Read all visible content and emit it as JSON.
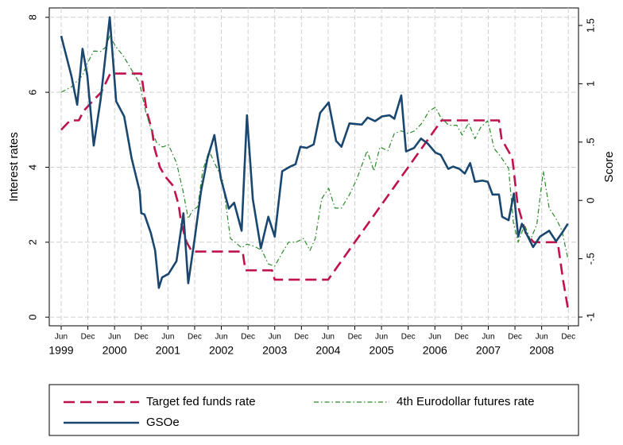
{
  "chart_data": {
    "type": "line",
    "y_label": "Interest rates",
    "y2_label": "Score",
    "xlim": [
      1999.277,
      2009.19
    ],
    "ylim": [
      -0.23,
      8.25
    ],
    "y2lim": [
      -1.075,
      1.65
    ],
    "yticks": [
      0,
      2,
      4,
      6,
      8
    ],
    "y2ticks": [
      -1,
      {
        "value": -0.5,
        "label": "-.5"
      },
      0,
      {
        "value": 0.5,
        "label": ".5"
      },
      1,
      1.5
    ],
    "xticks": [
      {
        "value": 1999.5,
        "label": "Jun"
      },
      {
        "value": 2000.0,
        "label": "Dec"
      },
      {
        "value": 2000.5,
        "label": "Jun"
      },
      {
        "value": 2001.0,
        "label": "Dec"
      },
      {
        "value": 2001.5,
        "label": "Jun"
      },
      {
        "value": 2002.0,
        "label": "Dec"
      },
      {
        "value": 2002.5,
        "label": "Jun"
      },
      {
        "value": 2003.0,
        "label": "Dec"
      },
      {
        "value": 2003.5,
        "label": "Jun"
      },
      {
        "value": 2004.0,
        "label": "Dec"
      },
      {
        "value": 2004.5,
        "label": "Jun"
      },
      {
        "value": 2005.0,
        "label": "Dec"
      },
      {
        "value": 2005.5,
        "label": "Jun"
      },
      {
        "value": 2006.0,
        "label": "Dec"
      },
      {
        "value": 2006.5,
        "label": "Jun"
      },
      {
        "value": 2007.0,
        "label": "Dec"
      },
      {
        "value": 2007.5,
        "label": "Jun"
      },
      {
        "value": 2008.0,
        "label": "Dec"
      },
      {
        "value": 2008.5,
        "label": "Jun"
      },
      {
        "value": 2009.0,
        "label": "Dec"
      }
    ],
    "year_labels": [
      {
        "value": 1999.5,
        "label": "1999"
      },
      {
        "value": 2000.5,
        "label": "2000"
      },
      {
        "value": 2001.5,
        "label": "2001"
      },
      {
        "value": 2002.5,
        "label": "2002"
      },
      {
        "value": 2003.5,
        "label": "2003"
      },
      {
        "value": 2004.5,
        "label": "2004"
      },
      {
        "value": 2005.5,
        "label": "2005"
      },
      {
        "value": 2006.5,
        "label": "2006"
      },
      {
        "value": 2007.5,
        "label": "2007"
      },
      {
        "value": 2008.5,
        "label": "2008"
      }
    ],
    "grid": true,
    "legend": "bottom",
    "series": [
      {
        "name": "Target fed funds rate",
        "color": "#c0134e",
        "style": "dash",
        "axis": "y",
        "x": [
          1999.5,
          1999.67,
          1999.83,
          1999.92,
          2000.08,
          2000.25,
          2000.42,
          2001.0,
          2001.05,
          2001.1,
          2001.2,
          2001.25,
          2001.35,
          2001.45,
          2001.6,
          2001.7,
          2001.75,
          2001.85,
          2001.95,
          2002.9,
          2002.95,
          2003.45,
          2003.5,
          2004.5,
          2004.625,
          2004.75,
          2004.875,
          2005.0,
          2005.125,
          2005.25,
          2005.375,
          2005.5,
          2005.625,
          2005.75,
          2005.875,
          2006.0,
          2006.125,
          2006.25,
          2006.375,
          2006.5,
          2006.625,
          2007.7,
          2007.75,
          2007.85,
          2007.95,
          2008.05,
          2008.2,
          2008.35,
          2008.8,
          2008.85,
          2008.9,
          2008.99
        ],
        "values": [
          5.0,
          5.25,
          5.25,
          5.5,
          5.75,
          6.0,
          6.5,
          6.5,
          6.0,
          5.5,
          5.0,
          4.5,
          4.0,
          3.75,
          3.5,
          3.0,
          2.5,
          2.0,
          1.75,
          1.75,
          1.25,
          1.25,
          1.0,
          1.0,
          1.25,
          1.5,
          1.75,
          2.0,
          2.25,
          2.5,
          2.75,
          3.0,
          3.25,
          3.5,
          3.75,
          4.0,
          4.25,
          4.5,
          4.75,
          5.0,
          5.25,
          5.25,
          4.75,
          4.5,
          4.25,
          3.0,
          2.25,
          2.0,
          2.0,
          1.5,
          1.0,
          0.25
        ]
      },
      {
        "name": "4th Eurodollar futures rate",
        "color": "#2a8a2a",
        "style": "dashdot",
        "axis": "y",
        "x": [
          1999.5,
          1999.69,
          1999.9,
          1999.99,
          2000.11,
          2000.24,
          2000.33,
          2000.41,
          2000.53,
          2000.66,
          2000.81,
          2000.97,
          2001.08,
          2001.18,
          2001.29,
          2001.4,
          2001.51,
          2001.66,
          2001.78,
          2001.88,
          2001.96,
          2002.06,
          2002.15,
          2002.27,
          2002.37,
          2002.52,
          2002.67,
          2002.76,
          2002.88,
          2002.98,
          2003.12,
          2003.26,
          2003.38,
          2003.5,
          2003.64,
          2003.76,
          2003.9,
          2004.04,
          2004.16,
          2004.26,
          2004.38,
          2004.51,
          2004.63,
          2004.75,
          2004.9,
          2005.04,
          2005.23,
          2005.36,
          2005.47,
          2005.62,
          2005.74,
          2005.87,
          2006.0,
          2006.12,
          2006.26,
          2006.39,
          2006.51,
          2006.61,
          2006.76,
          2006.91,
          2007.01,
          2007.13,
          2007.25,
          2007.36,
          2007.49,
          2007.61,
          2007.73,
          2007.88,
          2007.97,
          2008.06,
          2008.18,
          2008.29,
          2008.41,
          2008.53,
          2008.64,
          2008.77,
          2008.88,
          2008.99
        ],
        "values": [
          6.0,
          6.14,
          6.45,
          6.77,
          7.1,
          7.09,
          7.2,
          7.5,
          7.2,
          6.98,
          6.62,
          6.24,
          5.5,
          5.03,
          4.65,
          4.54,
          4.6,
          4.12,
          3.38,
          2.63,
          2.85,
          2.95,
          3.9,
          4.44,
          4.12,
          3.69,
          2.1,
          2.0,
          1.85,
          1.95,
          1.89,
          1.78,
          1.42,
          1.36,
          1.72,
          2.0,
          2.0,
          2.1,
          1.78,
          2.1,
          3.16,
          3.44,
          2.91,
          2.91,
          3.27,
          3.69,
          4.44,
          3.9,
          4.54,
          4.44,
          4.9,
          4.97,
          4.9,
          4.97,
          5.18,
          5.5,
          5.6,
          5.33,
          5.12,
          5.12,
          4.86,
          5.18,
          4.76,
          5.07,
          5.24,
          4.5,
          4.29,
          3.97,
          2.53,
          2.0,
          2.46,
          2.06,
          2.48,
          3.9,
          2.91,
          2.63,
          2.31,
          1.57
        ]
      },
      {
        "name": "GSOe",
        "color": "#1a476f",
        "style": "solid",
        "axis": "y2",
        "x": [
          1999.5,
          1999.69,
          1999.8,
          1999.9,
          1999.99,
          2000.11,
          2000.24,
          2000.41,
          2000.53,
          2000.68,
          2000.82,
          2000.97,
          2001.0,
          2001.06,
          2001.18,
          2001.26,
          2001.33,
          2001.39,
          2001.51,
          2001.66,
          2001.79,
          2001.88,
          2002.0,
          2002.12,
          2002.24,
          2002.37,
          2002.49,
          2002.64,
          2002.74,
          2002.88,
          2002.98,
          2003.09,
          2003.24,
          2003.38,
          2003.5,
          2003.64,
          2003.79,
          2003.89,
          2003.98,
          2004.1,
          2004.23,
          2004.35,
          2004.51,
          2004.65,
          2004.75,
          2004.9,
          2005.13,
          2005.24,
          2005.38,
          2005.51,
          2005.65,
          2005.74,
          2005.87,
          2005.96,
          2006.11,
          2006.24,
          2006.36,
          2006.51,
          2006.61,
          2006.75,
          2006.84,
          2006.96,
          2007.06,
          2007.16,
          2007.25,
          2007.39,
          2007.49,
          2007.58,
          2007.7,
          2007.76,
          2007.88,
          2007.98,
          2008.06,
          2008.13,
          2008.22,
          2008.34,
          2008.47,
          2008.64,
          2008.77,
          2008.88,
          2008.99
        ],
        "values": [
          1.41,
          1.07,
          0.82,
          1.3,
          1.07,
          0.47,
          0.87,
          1.57,
          0.85,
          0.72,
          0.36,
          0.08,
          -0.11,
          -0.12,
          -0.28,
          -0.43,
          -0.75,
          -0.66,
          -0.63,
          -0.52,
          -0.11,
          -0.71,
          -0.33,
          0.08,
          0.36,
          0.56,
          0.19,
          -0.07,
          -0.02,
          -0.26,
          0.73,
          0.01,
          -0.41,
          -0.14,
          -0.31,
          0.25,
          0.29,
          0.31,
          0.46,
          0.45,
          0.48,
          0.75,
          0.84,
          0.51,
          0.46,
          0.66,
          0.65,
          0.71,
          0.68,
          0.72,
          0.73,
          0.7,
          0.9,
          0.42,
          0.45,
          0.53,
          0.49,
          0.41,
          0.39,
          0.27,
          0.29,
          0.27,
          0.23,
          0.32,
          0.16,
          0.17,
          0.16,
          0.05,
          0.05,
          -0.14,
          -0.17,
          0.06,
          -0.31,
          -0.2,
          -0.29,
          -0.4,
          -0.31,
          -0.26,
          -0.35,
          -0.28,
          -0.2
        ]
      }
    ]
  }
}
